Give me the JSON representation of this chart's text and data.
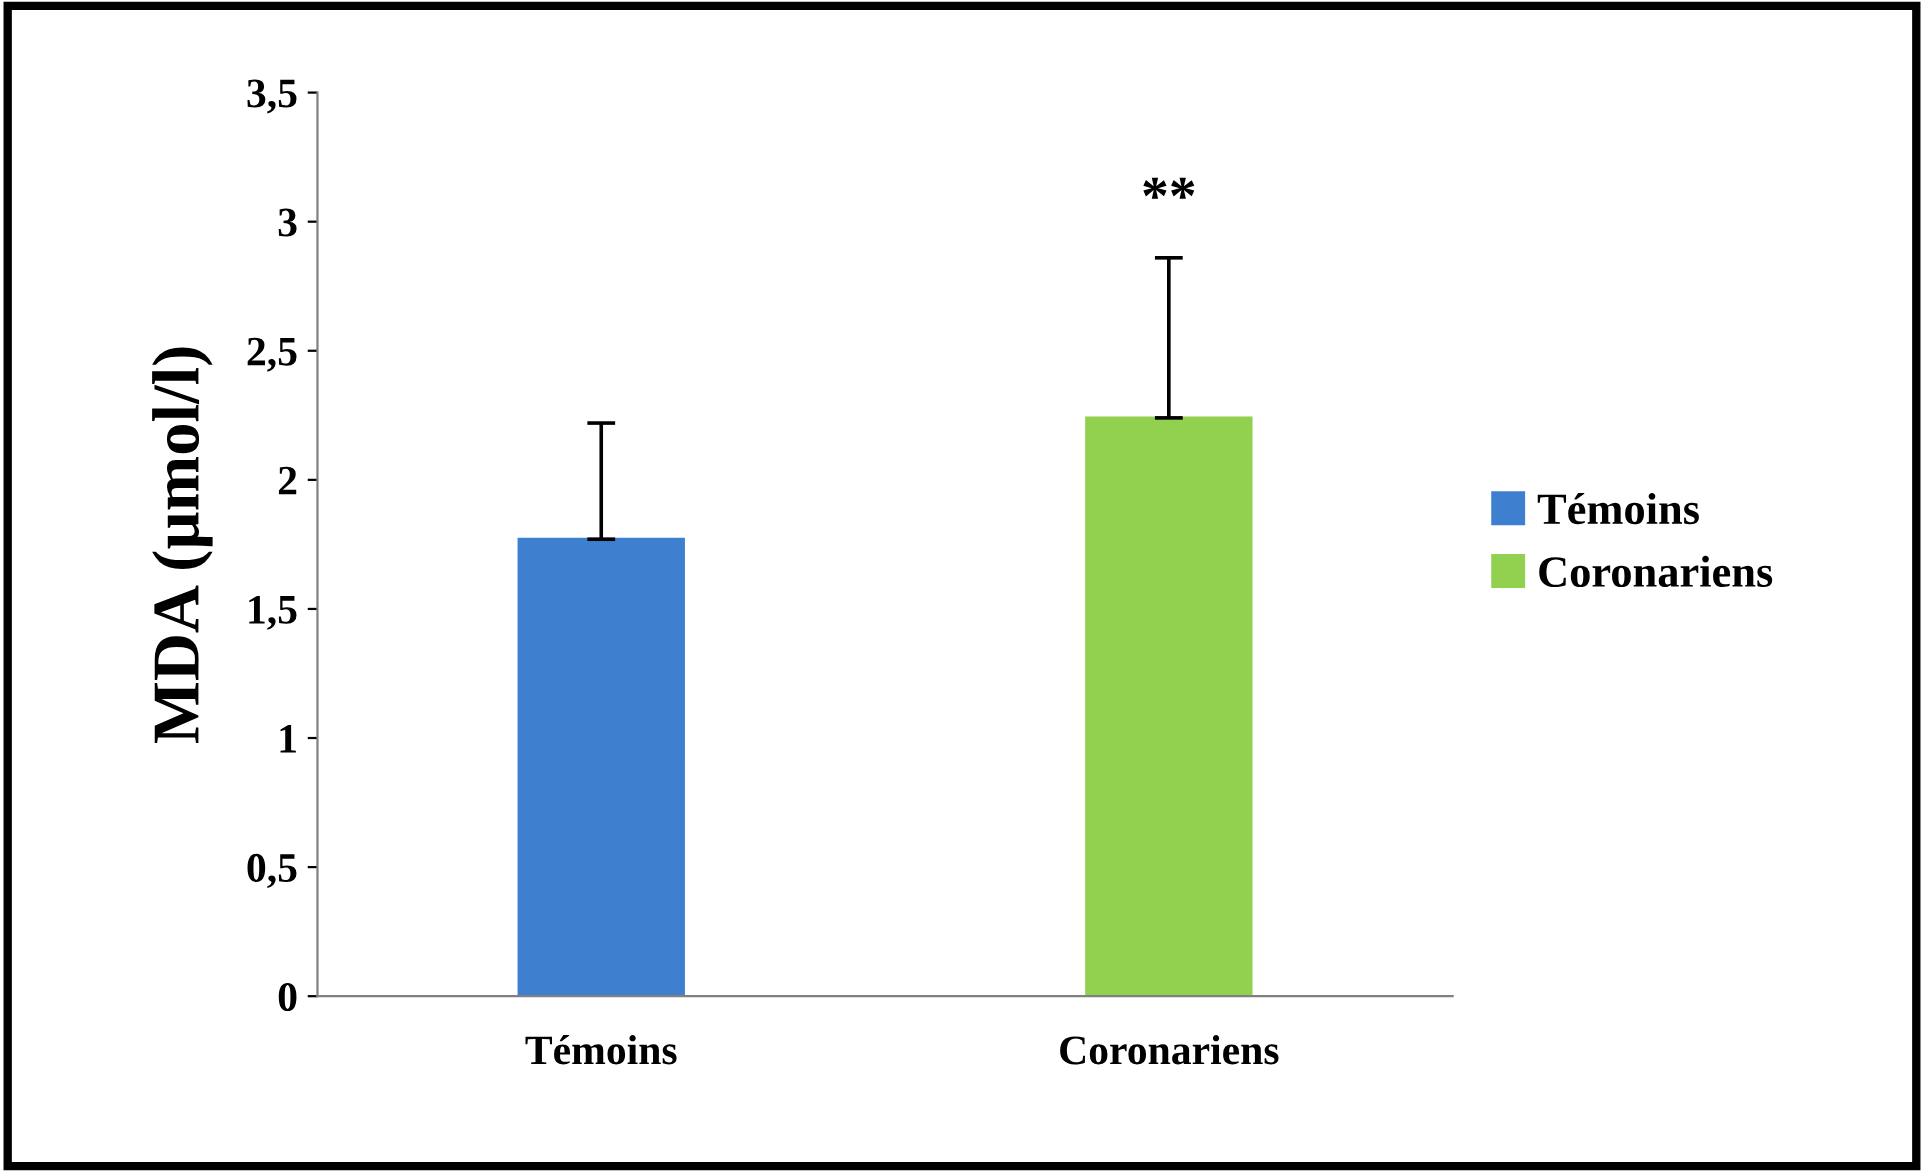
{
  "chart_data": {
    "type": "bar",
    "ylabel": "MDA (µmol/l)",
    "categories": [
      "Témoins",
      "Coronariens"
    ],
    "series": [
      {
        "name": "Témoins",
        "color": "#3f7fd0",
        "values": [
          1.77,
          null
        ],
        "errors": [
          [
            1.77,
            2.22
          ],
          null
        ]
      },
      {
        "name": "Coronariens",
        "color": "#92d050",
        "values": [
          null,
          2.24
        ],
        "errors": [
          null,
          [
            2.24,
            2.86
          ]
        ]
      }
    ],
    "ylim": [
      0,
      3.5
    ],
    "yticks": [
      0,
      {
        "value": 0.5,
        "label": "0,5"
      },
      1,
      {
        "value": 1.5,
        "label": "1,5"
      },
      2,
      {
        "value": 2.5,
        "label": "2,5"
      },
      3,
      {
        "value": 3.5,
        "label": "3,5"
      }
    ],
    "annotations": [
      "**"
    ],
    "grid": false,
    "legend": "right"
  }
}
